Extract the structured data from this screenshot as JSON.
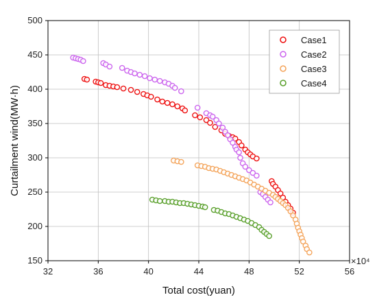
{
  "chart_data": {
    "type": "scatter",
    "xlabel": "Total cost(yuan)",
    "ylabel": "Curtailment wind(MW·h)",
    "x_multiplier_label": "×10⁴",
    "xlim": [
      32,
      56
    ],
    "ylim": [
      150,
      500
    ],
    "xticks": [
      32,
      36,
      40,
      44,
      48,
      52,
      56
    ],
    "yticks": [
      150,
      200,
      250,
      300,
      350,
      400,
      450,
      500
    ],
    "grid": true,
    "legend_position": "top-right",
    "series": [
      {
        "name": "Case1",
        "color": "#ee1111",
        "points": [
          [
            34.9,
            415
          ],
          [
            35.1,
            414
          ],
          [
            35.8,
            411
          ],
          [
            36.0,
            410
          ],
          [
            36.2,
            409
          ],
          [
            36.6,
            406
          ],
          [
            36.9,
            405
          ],
          [
            37.2,
            404
          ],
          [
            37.5,
            403
          ],
          [
            38.0,
            401
          ],
          [
            38.6,
            399
          ],
          [
            39.1,
            396
          ],
          [
            39.6,
            393
          ],
          [
            39.9,
            391
          ],
          [
            40.2,
            389
          ],
          [
            40.7,
            385
          ],
          [
            41.1,
            382
          ],
          [
            41.5,
            380
          ],
          [
            41.9,
            378
          ],
          [
            42.3,
            375
          ],
          [
            42.7,
            372
          ],
          [
            42.9,
            369
          ],
          [
            43.7,
            362
          ],
          [
            44.1,
            359
          ],
          [
            44.6,
            355
          ],
          [
            44.9,
            351
          ],
          [
            45.3,
            345
          ],
          [
            45.8,
            340
          ],
          [
            46.1,
            335
          ],
          [
            46.4,
            332
          ],
          [
            46.7,
            330
          ],
          [
            46.9,
            328
          ],
          [
            47.2,
            323
          ],
          [
            47.4,
            318
          ],
          [
            47.7,
            312
          ],
          [
            47.9,
            308
          ],
          [
            48.1,
            305
          ],
          [
            48.3,
            302
          ],
          [
            48.6,
            299
          ],
          [
            49.8,
            266
          ],
          [
            49.9,
            262
          ],
          [
            50.1,
            258
          ],
          [
            50.3,
            253
          ],
          [
            50.5,
            248
          ],
          [
            50.7,
            242
          ],
          [
            50.9,
            236
          ],
          [
            51.1,
            231
          ],
          [
            51.3,
            226
          ],
          [
            51.5,
            220
          ]
        ]
      },
      {
        "name": "Case2",
        "color": "#cc66ee",
        "points": [
          [
            34.0,
            446
          ],
          [
            34.2,
            445
          ],
          [
            34.4,
            444
          ],
          [
            34.6,
            443
          ],
          [
            34.8,
            441
          ],
          [
            36.4,
            438
          ],
          [
            36.6,
            436
          ],
          [
            36.9,
            433
          ],
          [
            37.9,
            431
          ],
          [
            38.3,
            427
          ],
          [
            38.6,
            425
          ],
          [
            38.9,
            423
          ],
          [
            39.3,
            421
          ],
          [
            39.7,
            419
          ],
          [
            40.1,
            416
          ],
          [
            40.5,
            414
          ],
          [
            40.9,
            412
          ],
          [
            41.3,
            410
          ],
          [
            41.6,
            408
          ],
          [
            41.9,
            405
          ],
          [
            42.1,
            402
          ],
          [
            42.6,
            397
          ],
          [
            43.9,
            373
          ],
          [
            44.6,
            365
          ],
          [
            44.9,
            362
          ],
          [
            45.1,
            360
          ],
          [
            45.4,
            355
          ],
          [
            45.6,
            350
          ],
          [
            45.9,
            344
          ],
          [
            46.1,
            338
          ],
          [
            46.3,
            333
          ],
          [
            46.5,
            327
          ],
          [
            46.7,
            322
          ],
          [
            46.9,
            316
          ],
          [
            47.0,
            312
          ],
          [
            47.2,
            308
          ],
          [
            47.3,
            300
          ],
          [
            47.5,
            292
          ],
          [
            47.7,
            287
          ],
          [
            48.0,
            282
          ],
          [
            48.3,
            278
          ],
          [
            48.6,
            274
          ],
          [
            48.9,
            250
          ],
          [
            49.1,
            247
          ],
          [
            49.3,
            243
          ],
          [
            49.5,
            239
          ],
          [
            49.7,
            235
          ]
        ]
      },
      {
        "name": "Case3",
        "color": "#f4a55c",
        "points": [
          [
            42.0,
            296
          ],
          [
            42.3,
            295
          ],
          [
            42.6,
            294
          ],
          [
            43.9,
            289
          ],
          [
            44.2,
            288
          ],
          [
            44.5,
            287
          ],
          [
            44.8,
            285
          ],
          [
            45.1,
            284
          ],
          [
            45.4,
            283
          ],
          [
            45.7,
            281
          ],
          [
            46.0,
            279
          ],
          [
            46.3,
            277
          ],
          [
            46.6,
            275
          ],
          [
            46.9,
            273
          ],
          [
            47.2,
            271
          ],
          [
            47.5,
            269
          ],
          [
            47.8,
            267
          ],
          [
            48.1,
            264
          ],
          [
            48.4,
            261
          ],
          [
            48.7,
            258
          ],
          [
            49.0,
            255
          ],
          [
            49.3,
            252
          ],
          [
            49.6,
            249
          ],
          [
            49.9,
            246
          ],
          [
            50.1,
            243
          ],
          [
            50.3,
            240
          ],
          [
            50.5,
            237
          ],
          [
            50.7,
            234
          ],
          [
            50.9,
            231
          ],
          [
            51.1,
            227
          ],
          [
            51.3,
            222
          ],
          [
            51.5,
            216
          ],
          [
            51.7,
            210
          ],
          [
            51.8,
            204
          ],
          [
            51.9,
            198
          ],
          [
            52.0,
            193
          ],
          [
            52.1,
            188
          ],
          [
            52.2,
            183
          ],
          [
            52.3,
            178
          ],
          [
            52.5,
            172
          ],
          [
            52.6,
            167
          ],
          [
            52.8,
            162
          ]
        ]
      },
      {
        "name": "Case4",
        "color": "#5aa02c",
        "points": [
          [
            40.3,
            239
          ],
          [
            40.6,
            238
          ],
          [
            40.9,
            237
          ],
          [
            41.3,
            237
          ],
          [
            41.6,
            236
          ],
          [
            41.9,
            236
          ],
          [
            42.2,
            235
          ],
          [
            42.5,
            234
          ],
          [
            42.8,
            234
          ],
          [
            43.1,
            233
          ],
          [
            43.4,
            232
          ],
          [
            43.7,
            231
          ],
          [
            44.0,
            230
          ],
          [
            44.3,
            229
          ],
          [
            44.5,
            228
          ],
          [
            45.2,
            224
          ],
          [
            45.5,
            223
          ],
          [
            45.8,
            221
          ],
          [
            46.1,
            219
          ],
          [
            46.4,
            218
          ],
          [
            46.7,
            216
          ],
          [
            47.0,
            214
          ],
          [
            47.3,
            212
          ],
          [
            47.6,
            210
          ],
          [
            47.9,
            208
          ],
          [
            48.2,
            205
          ],
          [
            48.5,
            202
          ],
          [
            48.8,
            199
          ],
          [
            49.0,
            195
          ],
          [
            49.2,
            192
          ],
          [
            49.4,
            189
          ],
          [
            49.6,
            186
          ]
        ]
      }
    ]
  }
}
